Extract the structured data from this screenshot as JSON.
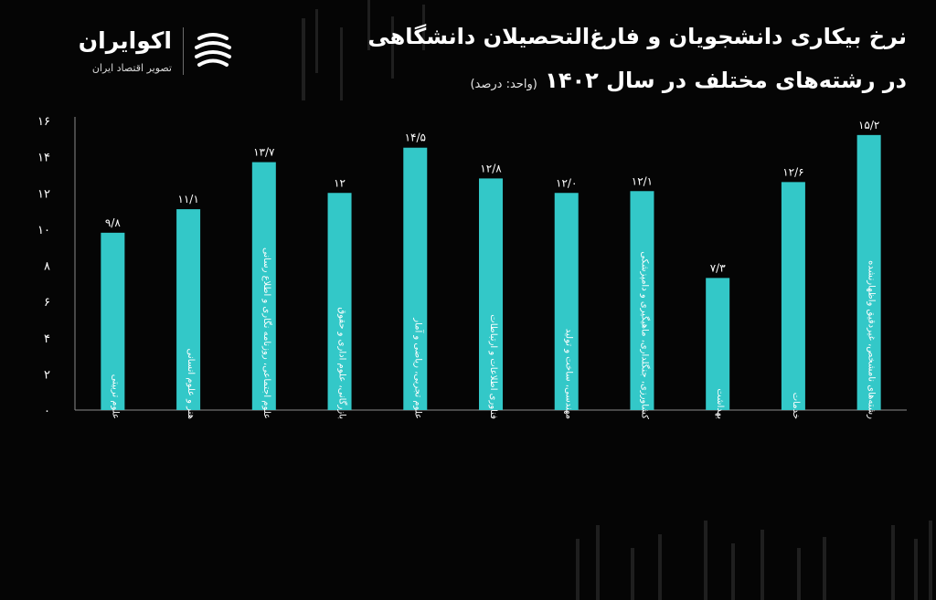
{
  "header": {
    "title_line1": "نرخ بیکاری دانشجویان و فارغ‌التحصیلان دانشگاهی",
    "title_line2": "در رشته‌های مختلف در سال ۱۴۰۲",
    "unit": "(واحد: درصد)"
  },
  "brand": {
    "name": "اکوایران",
    "tagline": "تصویر اقتصاد ایران"
  },
  "colors": {
    "bar": "#33c8c8",
    "background": "#050505",
    "axis": "#8a8a8a",
    "text": "#ffffff"
  },
  "chart_data": {
    "type": "bar",
    "title": "نرخ بیکاری دانشجویان و فارغ‌التحصیلان دانشگاهی در رشته‌های مختلف در سال ۱۴۰۲",
    "ylabel": "درصد",
    "ylim": [
      0,
      16
    ],
    "yticks": [
      0,
      2,
      4,
      6,
      8,
      10,
      12,
      14,
      16
    ],
    "ytick_labels": [
      "۰",
      "۲",
      "۴",
      "۶",
      "۸",
      "۱۰",
      "۱۲",
      "۱۴",
      "۱۶"
    ],
    "grid": false,
    "categories": [
      "علوم تربیتی",
      "هنر و علوم انسانی",
      "علوم اجتماعی، روزنامه نگاری و اطلاع رسانی",
      "بازرگانی، علوم اداری و حقوق",
      "علوم تجربی، ریاضی و آمار",
      "فناوری اطلاعات و ارتباطات",
      "مهندسی، ساخت و تولید",
      "کشاورزی، جنگلداری، ماهیگیری و دامپزشکی",
      "بهداشت",
      "خدمات",
      "رشته‌های نامشخص، غیردقیق واظهارنشده"
    ],
    "values": [
      9.8,
      11.1,
      13.7,
      12,
      14.5,
      12.8,
      12.0,
      12.1,
      7.3,
      12.6,
      15.2
    ],
    "value_labels": [
      "۹/۸",
      "۱۱/۱",
      "۱۳/۷",
      "۱۲",
      "۱۴/۵",
      "۱۲/۸",
      "۱۲/۰",
      "۱۲/۱",
      "۷/۳",
      "۱۲/۶",
      "۱۵/۲"
    ]
  }
}
